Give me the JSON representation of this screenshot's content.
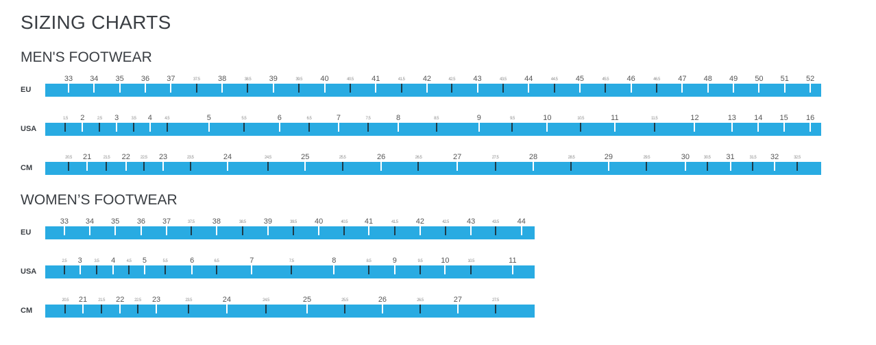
{
  "page": {
    "title": "SIZING CHARTS"
  },
  "colors": {
    "bar": "#29ABE2",
    "major_tick": "#FFFFFF",
    "minor_tick": "#1E3A47",
    "heading": "#3A3E43",
    "size_label": "#555555",
    "minor_size_label": "#8C8C8C",
    "background": "#FFFFFF"
  },
  "chart_data": {
    "type": "table",
    "subtype": "size-conversion-rulers",
    "title": "SIZING CHARTS",
    "legend_position": "none",
    "grid": false,
    "sections": [
      {
        "heading": "MEN'S FOOTWEAR",
        "rulers": [
          {
            "unit": "EU",
            "ticks": [
              {
                "size": "33",
                "pos": 3.0
              },
              {
                "size": "34",
                "pos": 6.3
              },
              {
                "size": "35",
                "pos": 9.6
              },
              {
                "size": "36",
                "pos": 12.9
              },
              {
                "size": "37",
                "pos": 16.2
              },
              {
                "size": "37.5",
                "pos": 19.5,
                "minor": true
              },
              {
                "size": "38",
                "pos": 22.8
              },
              {
                "size": "38.5",
                "pos": 26.1,
                "minor": true
              },
              {
                "size": "39",
                "pos": 29.4
              },
              {
                "size": "39.5",
                "pos": 32.7,
                "minor": true
              },
              {
                "size": "40",
                "pos": 36.0
              },
              {
                "size": "40.5",
                "pos": 39.3,
                "minor": true
              },
              {
                "size": "41",
                "pos": 42.6
              },
              {
                "size": "41.5",
                "pos": 45.9,
                "minor": true
              },
              {
                "size": "42",
                "pos": 49.2
              },
              {
                "size": "42.5",
                "pos": 52.4,
                "minor": true
              },
              {
                "size": "43",
                "pos": 55.7
              },
              {
                "size": "43.5",
                "pos": 59.0,
                "minor": true
              },
              {
                "size": "44",
                "pos": 62.3
              },
              {
                "size": "44.5",
                "pos": 65.6,
                "minor": true
              },
              {
                "size": "45",
                "pos": 68.9
              },
              {
                "size": "45.5",
                "pos": 72.2,
                "minor": true
              },
              {
                "size": "46",
                "pos": 75.5
              },
              {
                "size": "46.5",
                "pos": 78.8,
                "minor": true
              },
              {
                "size": "47",
                "pos": 82.1
              },
              {
                "size": "48",
                "pos": 85.4
              },
              {
                "size": "49",
                "pos": 88.7
              },
              {
                "size": "50",
                "pos": 92.0
              },
              {
                "size": "51",
                "pos": 95.3
              },
              {
                "size": "52",
                "pos": 98.6
              }
            ]
          },
          {
            "unit": "USA",
            "ticks": [
              {
                "size": "1.5",
                "pos": 2.6,
                "minor": true
              },
              {
                "size": "2",
                "pos": 4.8
              },
              {
                "size": "2.5",
                "pos": 7.0,
                "minor": true
              },
              {
                "size": "3",
                "pos": 9.2
              },
              {
                "size": "3.5",
                "pos": 11.4,
                "minor": true
              },
              {
                "size": "4",
                "pos": 13.5
              },
              {
                "size": "4.5",
                "pos": 15.7,
                "minor": true
              },
              {
                "size": "5",
                "pos": 21.1
              },
              {
                "size": "5.5",
                "pos": 25.6,
                "minor": true
              },
              {
                "size": "6",
                "pos": 30.2
              },
              {
                "size": "6.5",
                "pos": 34.0,
                "minor": true
              },
              {
                "size": "7",
                "pos": 37.8
              },
              {
                "size": "7.5",
                "pos": 41.6,
                "minor": true
              },
              {
                "size": "8",
                "pos": 45.5
              },
              {
                "size": "8.5",
                "pos": 50.4,
                "minor": true
              },
              {
                "size": "9",
                "pos": 55.9
              },
              {
                "size": "9.5",
                "pos": 60.2,
                "minor": true
              },
              {
                "size": "10",
                "pos": 64.7
              },
              {
                "size": "10.5",
                "pos": 69.0,
                "minor": true
              },
              {
                "size": "11",
                "pos": 73.4
              },
              {
                "size": "11.5",
                "pos": 78.5,
                "minor": true
              },
              {
                "size": "12",
                "pos": 83.7
              },
              {
                "size": "13",
                "pos": 88.5
              },
              {
                "size": "14",
                "pos": 91.9
              },
              {
                "size": "15",
                "pos": 95.2
              },
              {
                "size": "16",
                "pos": 98.6
              }
            ]
          },
          {
            "unit": "CM",
            "ticks": [
              {
                "size": "20.5",
                "pos": 3.0,
                "minor": true
              },
              {
                "size": "21",
                "pos": 5.4
              },
              {
                "size": "21.5",
                "pos": 7.9,
                "minor": true
              },
              {
                "size": "22",
                "pos": 10.4
              },
              {
                "size": "22.5",
                "pos": 12.7,
                "minor": true
              },
              {
                "size": "23",
                "pos": 15.2
              },
              {
                "size": "23.5",
                "pos": 18.7,
                "minor": true
              },
              {
                "size": "24",
                "pos": 23.5
              },
              {
                "size": "24.5",
                "pos": 28.7,
                "minor": true
              },
              {
                "size": "25",
                "pos": 33.5
              },
              {
                "size": "25.5",
                "pos": 38.3,
                "minor": true
              },
              {
                "size": "26",
                "pos": 43.3
              },
              {
                "size": "26.5",
                "pos": 48.1,
                "minor": true
              },
              {
                "size": "27",
                "pos": 53.1
              },
              {
                "size": "27.5",
                "pos": 58.0,
                "minor": true
              },
              {
                "size": "28",
                "pos": 62.9
              },
              {
                "size": "28.5",
                "pos": 67.8,
                "minor": true
              },
              {
                "size": "29",
                "pos": 72.6
              },
              {
                "size": "29.5",
                "pos": 77.5,
                "minor": true
              },
              {
                "size": "30",
                "pos": 82.5
              },
              {
                "size": "30.5",
                "pos": 85.3,
                "minor": true
              },
              {
                "size": "31",
                "pos": 88.3
              },
              {
                "size": "31.5",
                "pos": 91.2,
                "minor": true
              },
              {
                "size": "32",
                "pos": 94.0
              },
              {
                "size": "32.5",
                "pos": 96.9,
                "minor": true
              }
            ]
          }
        ]
      },
      {
        "heading": "WOMEN’S FOOTWEAR",
        "rulers": [
          {
            "unit": "EU",
            "ticks": [
              {
                "size": "33",
                "pos": 3.9
              },
              {
                "size": "34",
                "pos": 9.1
              },
              {
                "size": "35",
                "pos": 14.3
              },
              {
                "size": "36",
                "pos": 19.6
              },
              {
                "size": "37",
                "pos": 24.8
              },
              {
                "size": "37.5",
                "pos": 29.8,
                "minor": true
              },
              {
                "size": "38",
                "pos": 35.0
              },
              {
                "size": "38.5",
                "pos": 40.3,
                "minor": true
              },
              {
                "size": "39",
                "pos": 45.5
              },
              {
                "size": "39.5",
                "pos": 50.7,
                "minor": true
              },
              {
                "size": "40",
                "pos": 55.9
              },
              {
                "size": "40.5",
                "pos": 61.1,
                "minor": true
              },
              {
                "size": "41",
                "pos": 66.1
              },
              {
                "size": "41.5",
                "pos": 71.4,
                "minor": true
              },
              {
                "size": "42",
                "pos": 76.6
              },
              {
                "size": "42.5",
                "pos": 81.8,
                "minor": true
              },
              {
                "size": "43",
                "pos": 87.0
              },
              {
                "size": "43.5",
                "pos": 92.0,
                "minor": true
              },
              {
                "size": "44",
                "pos": 97.3
              }
            ]
          },
          {
            "unit": "USA",
            "ticks": [
              {
                "size": "2.5",
                "pos": 3.9,
                "minor": true
              },
              {
                "size": "3",
                "pos": 7.1
              },
              {
                "size": "3.5",
                "pos": 10.5,
                "minor": true
              },
              {
                "size": "4",
                "pos": 13.9
              },
              {
                "size": "4.5",
                "pos": 17.1,
                "minor": true
              },
              {
                "size": "5",
                "pos": 20.3
              },
              {
                "size": "5.5",
                "pos": 24.5,
                "minor": true
              },
              {
                "size": "6",
                "pos": 30.0
              },
              {
                "size": "6.5",
                "pos": 35.0,
                "minor": true
              },
              {
                "size": "7",
                "pos": 42.2
              },
              {
                "size": "7.5",
                "pos": 50.3,
                "minor": true
              },
              {
                "size": "8",
                "pos": 59.0
              },
              {
                "size": "8.5",
                "pos": 66.1,
                "minor": true
              },
              {
                "size": "9",
                "pos": 71.4
              },
              {
                "size": "9.5",
                "pos": 76.6,
                "minor": true
              },
              {
                "size": "10",
                "pos": 81.7
              },
              {
                "size": "10.5",
                "pos": 87.0,
                "minor": true
              },
              {
                "size": "11",
                "pos": 95.5
              }
            ]
          },
          {
            "unit": "CM",
            "ticks": [
              {
                "size": "20.5",
                "pos": 4.1,
                "minor": true
              },
              {
                "size": "21",
                "pos": 7.7
              },
              {
                "size": "21.5",
                "pos": 11.5,
                "minor": true
              },
              {
                "size": "22",
                "pos": 15.3
              },
              {
                "size": "22.5",
                "pos": 18.9,
                "minor": true
              },
              {
                "size": "23",
                "pos": 22.7
              },
              {
                "size": "23.5",
                "pos": 29.3,
                "minor": true
              },
              {
                "size": "24",
                "pos": 37.1
              },
              {
                "size": "24.5",
                "pos": 45.1,
                "minor": true
              },
              {
                "size": "25",
                "pos": 53.5
              },
              {
                "size": "25.5",
                "pos": 61.2,
                "minor": true
              },
              {
                "size": "26",
                "pos": 68.9
              },
              {
                "size": "26.5",
                "pos": 76.6,
                "minor": true
              },
              {
                "size": "27",
                "pos": 84.3
              },
              {
                "size": "27.5",
                "pos": 92.0,
                "minor": true
              }
            ]
          }
        ]
      }
    ]
  }
}
